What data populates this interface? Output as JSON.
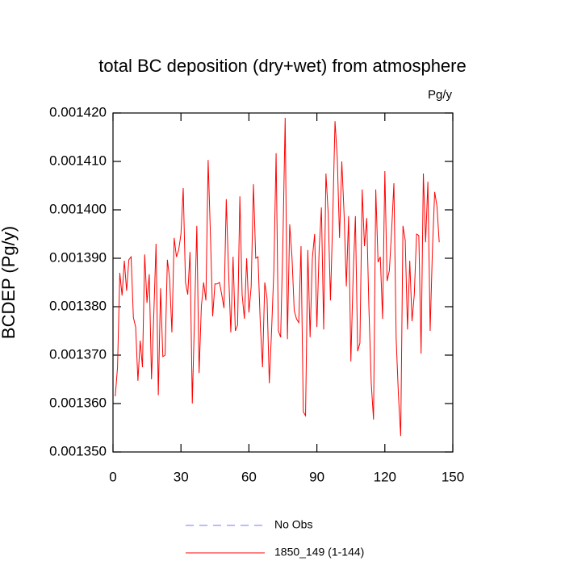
{
  "chart_data": {
    "type": "line",
    "title": "total BC deposition (dry+wet) from atmosphere",
    "units": "Pg/y",
    "y_label": "BCDEP  (Pg/y)",
    "xlim": [
      0,
      150
    ],
    "xticks": [
      0,
      30,
      60,
      90,
      120,
      150
    ],
    "ylim": [
      0.00135,
      0.00142
    ],
    "yticks": [
      {
        "value": 0.00135,
        "label": "0.001350"
      },
      {
        "value": 0.00136,
        "label": "0.001360"
      },
      {
        "value": 0.00137,
        "label": "0.001370"
      },
      {
        "value": 0.00138,
        "label": "0.001380"
      },
      {
        "value": 0.00139,
        "label": "0.001390"
      },
      {
        "value": 0.0014,
        "label": "0.001400"
      },
      {
        "value": 0.00141,
        "label": "0.001410"
      },
      {
        "value": 0.00142,
        "label": "0.001420"
      }
    ],
    "x": [
      1,
      2,
      3,
      4,
      5,
      6,
      7,
      8,
      9,
      10,
      11,
      12,
      13,
      14,
      15,
      16,
      17,
      18,
      19,
      20,
      21,
      22,
      23,
      24,
      25,
      26,
      27,
      28,
      29,
      30,
      31,
      32,
      33,
      34,
      35,
      36,
      37,
      38,
      39,
      40,
      41,
      42,
      43,
      44,
      45,
      46,
      47,
      48,
      49,
      50,
      51,
      52,
      53,
      54,
      55,
      56,
      57,
      58,
      59,
      60,
      61,
      62,
      63,
      64,
      65,
      66,
      67,
      68,
      69,
      70,
      71,
      72,
      73,
      74,
      75,
      76,
      77,
      78,
      79,
      80,
      81,
      82,
      83,
      84,
      85,
      86,
      87,
      88,
      89,
      90,
      91,
      92,
      93,
      94,
      95,
      96,
      97,
      98,
      99,
      100,
      101,
      102,
      103,
      104,
      105,
      106,
      107,
      108,
      109,
      110,
      111,
      112,
      113,
      114,
      115,
      116,
      117,
      118,
      119,
      120,
      121,
      122,
      123,
      124,
      125,
      126,
      127,
      128,
      129,
      130,
      131,
      132,
      133,
      134,
      135,
      136,
      137,
      138,
      139,
      140,
      141,
      142,
      143,
      144
    ],
    "series": [
      {
        "name": "No Obs",
        "color": "#7777ff",
        "style": "dashed"
      },
      {
        "name": "1850_149 (1-144)",
        "color": "#ff0000",
        "style": "solid",
        "values": [
          0.0013615,
          0.0013675,
          0.001387,
          0.0013823,
          0.0013895,
          0.0013833,
          0.0013897,
          0.0013903,
          0.0013778,
          0.0013758,
          0.0013647,
          0.001373,
          0.0013675,
          0.0013908,
          0.0013808,
          0.0013867,
          0.001365,
          0.0013783,
          0.001393,
          0.0013617,
          0.0013838,
          0.0013697,
          0.00137,
          0.0013897,
          0.0013858,
          0.0013747,
          0.0013942,
          0.0013903,
          0.0013917,
          0.001395,
          0.0014045,
          0.001385,
          0.0013825,
          0.0013913,
          0.00136,
          0.001378,
          0.0013967,
          0.0013663,
          0.00138,
          0.001385,
          0.0013813,
          0.0014103,
          0.001395,
          0.001378,
          0.0013847,
          0.0013847,
          0.001385,
          0.0013825,
          0.0013797,
          0.0014022,
          0.0013875,
          0.0013747,
          0.0013903,
          0.001375,
          0.0013762,
          0.0014028,
          0.0013825,
          0.0013775,
          0.00139,
          0.0013788,
          0.0013842,
          0.0014053,
          0.00139,
          0.0013903,
          0.0013767,
          0.0013675,
          0.001385,
          0.0013817,
          0.0013642,
          0.001375,
          0.0013875,
          0.0014117,
          0.001375,
          0.0013737,
          0.0013933,
          0.001419,
          0.0013733,
          0.001397,
          0.0013903,
          0.0013792,
          0.0013775,
          0.0013767,
          0.0013925,
          0.0013583,
          0.0013575,
          0.0013917,
          0.0013737,
          0.00139,
          0.001395,
          0.0013758,
          0.0013917,
          0.0014005,
          0.0013753,
          0.0014075,
          0.0013992,
          0.0013813,
          0.0013983,
          0.0014183,
          0.0014108,
          0.0013942,
          0.00141,
          0.0013992,
          0.0013842,
          0.0013987,
          0.0013687,
          0.0013862,
          0.0013987,
          0.0013708,
          0.0013725,
          0.0014042,
          0.0013925,
          0.0013983,
          0.0013792,
          0.0013642,
          0.0013567,
          0.0014042,
          0.0013892,
          0.0013903,
          0.0013775,
          0.001408,
          0.0013853,
          0.0013875,
          0.0013958,
          0.0014055,
          0.0013733,
          0.0013617,
          0.0013533,
          0.0013967,
          0.0013937,
          0.0013753,
          0.0013895,
          0.001377,
          0.0013825,
          0.001395,
          0.0013947,
          0.0013703,
          0.0014075,
          0.0013933,
          0.0014058,
          0.001375,
          0.0013917,
          0.0014037,
          0.0014008,
          0.0013933
        ]
      }
    ]
  }
}
